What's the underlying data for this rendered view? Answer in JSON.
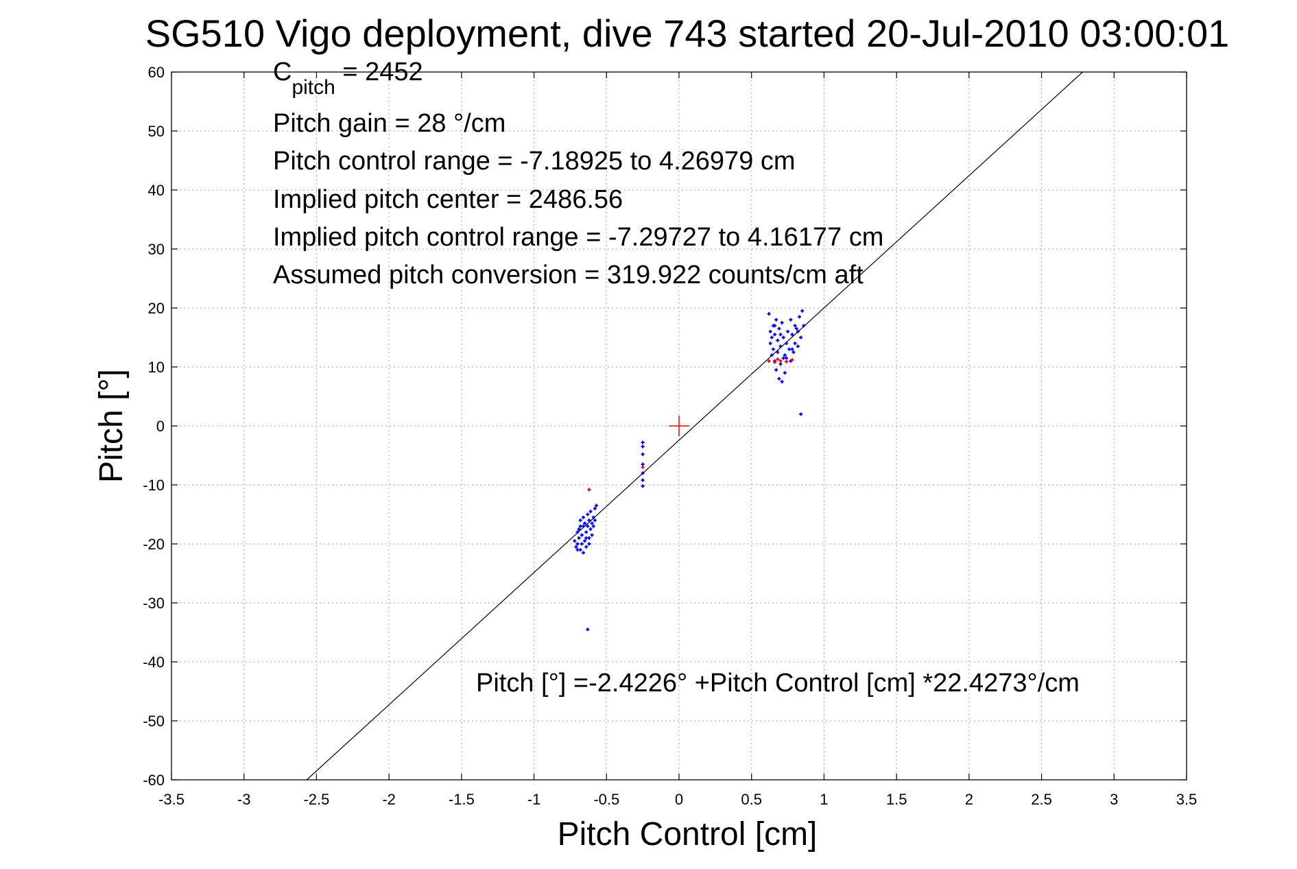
{
  "chart_data": {
    "type": "scatter",
    "title": "SG510 Vigo deployment, dive 743 started 20-Jul-2010 03:00:01",
    "xlabel": "Pitch Control [cm]",
    "ylabel": "Pitch [°]",
    "xlim": [
      -3.5,
      3.5
    ],
    "ylim": [
      -60,
      60
    ],
    "xticks": [
      -3.5,
      -3,
      -2.5,
      -2,
      -1.5,
      -1,
      -0.5,
      0,
      0.5,
      1,
      1.5,
      2,
      2.5,
      3,
      3.5
    ],
    "yticks": [
      -60,
      -50,
      -40,
      -30,
      -20,
      -10,
      0,
      10,
      20,
      30,
      40,
      50,
      60
    ],
    "grid": true,
    "annotations": {
      "c_pitch_symbol": "C",
      "c_pitch_subscript": "pitch",
      "c_pitch_value": " = 2452",
      "lines": [
        "Pitch gain = 28 °/cm",
        "Pitch control range = -7.18925 to 4.26979 cm",
        "Implied pitch center = 2486.56",
        "Implied pitch control range = -7.29727 to 4.16177 cm",
        "Assumed pitch conversion = 319.922 counts/cm aft"
      ],
      "fit_equation": "Pitch [°] =-2.4226° +Pitch Control [cm] *22.4273°/cm"
    },
    "fit_line": {
      "intercept": -2.4226,
      "slope": 22.4273,
      "color": "#000000"
    },
    "center_marker": {
      "x": 0,
      "y": 0,
      "color": "#ff0000"
    },
    "series": [
      {
        "color": "#0000ff",
        "points": [
          [
            -0.72,
            -19.5
          ],
          [
            -0.71,
            -20.5
          ],
          [
            -0.7,
            -18.0
          ],
          [
            -0.7,
            -20.0
          ],
          [
            -0.69,
            -17.5
          ],
          [
            -0.69,
            -19.0
          ],
          [
            -0.68,
            -21.0
          ],
          [
            -0.68,
            -16.0
          ],
          [
            -0.67,
            -18.5
          ],
          [
            -0.67,
            -20.0
          ],
          [
            -0.66,
            -17.0
          ],
          [
            -0.66,
            -15.5
          ],
          [
            -0.65,
            -19.5
          ],
          [
            -0.65,
            -16.5
          ],
          [
            -0.64,
            -18.0
          ],
          [
            -0.64,
            -20.5
          ],
          [
            -0.63,
            -17.0
          ],
          [
            -0.63,
            -15.0
          ],
          [
            -0.62,
            -19.0
          ],
          [
            -0.62,
            -16.0
          ],
          [
            -0.61,
            -14.5
          ],
          [
            -0.61,
            -17.5
          ],
          [
            -0.6,
            -18.5
          ],
          [
            -0.6,
            -16.5
          ],
          [
            -0.59,
            -15.5
          ],
          [
            -0.59,
            -17.0
          ],
          [
            -0.58,
            -14.0
          ],
          [
            -0.58,
            -16.0
          ],
          [
            -0.57,
            -13.5
          ],
          [
            -0.7,
            -21.0
          ],
          [
            -0.66,
            -21.5
          ],
          [
            -0.62,
            -20.0
          ],
          [
            -0.68,
            -17.0
          ],
          [
            -0.64,
            -19.0
          ],
          [
            -0.63,
            -34.5
          ],
          [
            -0.25,
            -2.8
          ],
          [
            -0.25,
            -3.5
          ],
          [
            -0.25,
            -4.8
          ],
          [
            -0.25,
            -6.5
          ],
          [
            -0.25,
            -8.0
          ],
          [
            -0.25,
            -9.2
          ],
          [
            -0.25,
            -10.2
          ],
          [
            0.62,
            19.0
          ],
          [
            0.63,
            16.0
          ],
          [
            0.63,
            14.0
          ],
          [
            0.64,
            12.0
          ],
          [
            0.64,
            15.0
          ],
          [
            0.65,
            17.0
          ],
          [
            0.65,
            13.0
          ],
          [
            0.66,
            11.0
          ],
          [
            0.66,
            15.5
          ],
          [
            0.67,
            18.0
          ],
          [
            0.67,
            9.5
          ],
          [
            0.68,
            12.5
          ],
          [
            0.68,
            14.5
          ],
          [
            0.69,
            16.5
          ],
          [
            0.69,
            8.0
          ],
          [
            0.7,
            10.5
          ],
          [
            0.7,
            13.5
          ],
          [
            0.71,
            17.5
          ],
          [
            0.71,
            7.5
          ],
          [
            0.72,
            11.5
          ],
          [
            0.72,
            15.0
          ],
          [
            0.73,
            12.0
          ],
          [
            0.73,
            9.0
          ],
          [
            0.74,
            14.0
          ],
          [
            0.75,
            16.0
          ],
          [
            0.76,
            13.0
          ],
          [
            0.77,
            11.0
          ],
          [
            0.77,
            18.0
          ],
          [
            0.78,
            15.5
          ],
          [
            0.79,
            12.5
          ],
          [
            0.8,
            17.0
          ],
          [
            0.8,
            14.0
          ],
          [
            0.81,
            16.5
          ],
          [
            0.82,
            13.5
          ],
          [
            0.83,
            18.5
          ],
          [
            0.84,
            15.0
          ],
          [
            0.85,
            19.5
          ],
          [
            0.86,
            17.0
          ],
          [
            0.84,
            2.0
          ],
          [
            0.66,
            17.0
          ],
          [
            0.7,
            15.5
          ],
          [
            0.74,
            11.5
          ],
          [
            0.78,
            13.0
          ],
          [
            0.82,
            16.0
          ]
        ]
      },
      {
        "color": "#ff0000",
        "points": [
          [
            -0.62,
            -10.8
          ],
          [
            -0.25,
            -7.0
          ],
          [
            0.62,
            11.0
          ],
          [
            0.66,
            10.8
          ],
          [
            0.7,
            11.0
          ],
          [
            0.74,
            10.9
          ],
          [
            0.78,
            11.2
          ],
          [
            0.68,
            11.3
          ]
        ]
      }
    ]
  }
}
